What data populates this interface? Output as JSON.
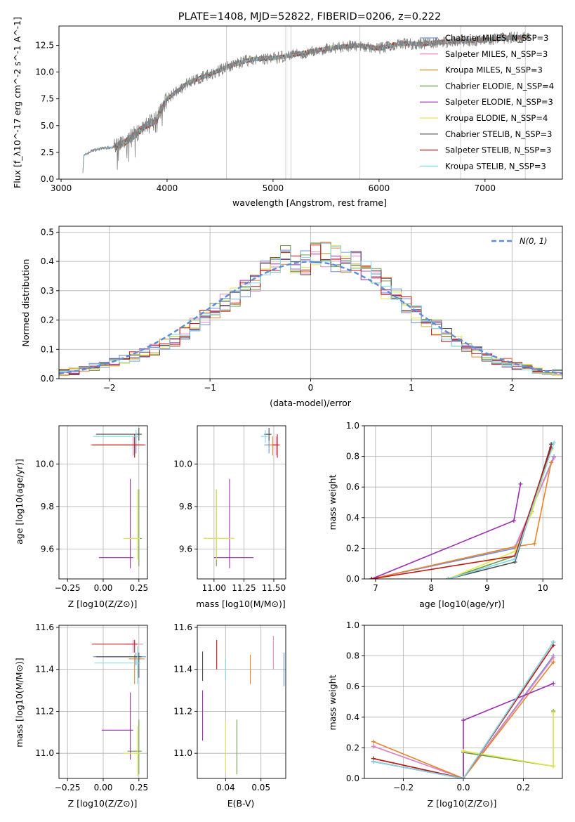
{
  "figure": {
    "title": "PLATE=1408, MJD=52822, FIBERID=0206, z=0.222"
  },
  "colors": {
    "Chabrier MILES": "#6a8fdc",
    "Salpeter MILES": "#e882c5",
    "Kroupa MILES": "#e8852a",
    "Chabrier ELODIE": "#6a9a4f",
    "Salpeter ELODIE": "#9b2fb0",
    "Kroupa ELODIE": "#e6e64a",
    "Chabrier STELIB": "#4a4a4a",
    "Salpeter STELIB": "#c01818",
    "Kroupa STELIB": "#7fd8e8",
    "observed": "#808080",
    "normal": "#5b8ed6"
  },
  "panels": {
    "spectrum": {
      "ylabel": "Flux [f_λ10^-17 erg cm^-2 s^-1 A^-1]",
      "xlabel": "wavelength [Angstrom, rest frame]",
      "xticks": [
        "3000",
        "4000",
        "5000",
        "6000",
        "7000"
      ],
      "yticks": [
        "0.0",
        "2.5",
        "5.0",
        "7.5",
        "10.0",
        "12.5"
      ]
    },
    "residuals": {
      "ylabel": "Normed distribution",
      "xlabel": "(data-model)/error",
      "xticks": [
        "−2",
        "−1",
        "0",
        "1",
        "2"
      ],
      "yticks": [
        "0.0",
        "0.1",
        "0.2",
        "0.3",
        "0.4",
        "0.5"
      ],
      "normal_label": "N(0, 1)"
    },
    "age_z": {
      "ylabel": "age  [log10(age/yr)]",
      "xlabel": "Z [log10(Z/Z⊙)]",
      "xticks": [
        "−0.25",
        "0.00",
        "0.25"
      ],
      "yticks": [
        "9.6",
        "9.8",
        "10.0"
      ]
    },
    "age_mass": {
      "xlabel": "mass [log10(M/M⊙)]",
      "xticks": [
        "11.00",
        "11.25",
        "11.50"
      ],
      "yticks": [
        "9.6",
        "9.8",
        "10.0"
      ]
    },
    "mw_age": {
      "ylabel": "mass weight",
      "xlabel": "age  [log10(age/yr)]",
      "xticks": [
        "7",
        "8",
        "9",
        "10"
      ],
      "yticks": [
        "0.0",
        "0.2",
        "0.4",
        "0.6",
        "0.8",
        "1.0"
      ]
    },
    "mass_z": {
      "ylabel": "mass [log10(M/M⊙)]",
      "xlabel": "Z [log10(Z/Z⊙)]",
      "xticks": [
        "−0.25",
        "0.00",
        "0.25"
      ],
      "yticks": [
        "11.0",
        "11.2",
        "11.4",
        "11.6"
      ]
    },
    "mass_ebv": {
      "xlabel": "E(B-V)",
      "xticks": [
        "0.04",
        "0.05"
      ],
      "yticks": [
        "11.0",
        "11.2",
        "11.4",
        "11.6"
      ]
    },
    "mw_z": {
      "ylabel": "mass weight",
      "xlabel": "Z [log10(Z/Z⊙)]",
      "xticks": [
        "−0.2",
        "0.0",
        "0.2"
      ],
      "yticks": [
        "0.0",
        "0.2",
        "0.4",
        "0.6",
        "0.8",
        "1.0"
      ]
    }
  },
  "chart_data": [
    {
      "type": "line",
      "title": "PLATE=1408, MJD=52822, FIBERID=0206, z=0.222",
      "xlabel": "wavelength [Angstrom, rest frame]",
      "ylabel": "Flux [f_λ10^-17 erg cm^-2 s^-1 A^-1]",
      "xlim": [
        2980,
        7730
      ],
      "ylim": [
        0,
        14.3
      ],
      "grid": false,
      "legend_position": "top-right",
      "observed_envelope": {
        "x": [
          3200,
          3215,
          3300,
          3400,
          3500,
          3600,
          3700,
          3800,
          3900,
          4000,
          4200,
          4400,
          4600,
          4800,
          5000,
          5200,
          5400,
          5600,
          5800,
          6000,
          6200,
          6400,
          6600,
          6800,
          7000,
          7200,
          7400
        ],
        "y": [
          0,
          2.2,
          2.7,
          2.9,
          3.0,
          3.4,
          4.2,
          5.0,
          5.5,
          7.5,
          9.0,
          9.8,
          10.6,
          11.2,
          11.3,
          11.6,
          12.0,
          12.3,
          12.5,
          12.2,
          12.7,
          12.6,
          12.8,
          12.9,
          13.0,
          13.2,
          13.3
        ]
      },
      "legend_series": [
        {
          "name": "Chabrier MILES, N_SSP=3"
        },
        {
          "name": "Salpeter MILES, N_SSP=3"
        },
        {
          "name": "Kroupa MILES, N_SSP=3"
        },
        {
          "name": "Chabrier ELODIE, N_SSP=4"
        },
        {
          "name": "Salpeter ELODIE, N_SSP=3"
        },
        {
          "name": "Kroupa ELODIE, N_SSP=4"
        },
        {
          "name": "Chabrier STELIB, N_SSP=3"
        },
        {
          "name": "Salpeter STELIB, N_SSP=3"
        },
        {
          "name": "Kroupa STELIB, N_SSP=3"
        }
      ]
    },
    {
      "type": "bar",
      "xlabel": "(data-model)/error",
      "ylabel": "Normed distribution",
      "xlim": [
        -2.5,
        2.5
      ],
      "ylim": [
        0,
        0.52
      ],
      "grid": true,
      "legend_position": "top-right",
      "bin_edges": [
        -2.5,
        -2.4,
        -2.3,
        -2.2,
        -2.1,
        -2.0,
        -1.9,
        -1.8,
        -1.7,
        -1.6,
        -1.5,
        -1.4,
        -1.3,
        -1.2,
        -1.1,
        -1.0,
        -0.9,
        -0.8,
        -0.7,
        -0.6,
        -0.5,
        -0.4,
        -0.3,
        -0.2,
        -0.1,
        0.0,
        0.1,
        0.2,
        0.3,
        0.4,
        0.5,
        0.6,
        0.7,
        0.8,
        0.9,
        1.0,
        1.1,
        1.2,
        1.3,
        1.4,
        1.5,
        1.6,
        1.7,
        1.8,
        1.9,
        2.0,
        2.1,
        2.2,
        2.3,
        2.4,
        2.5
      ],
      "hist_mean": [
        0.02,
        0.025,
        0.03,
        0.04,
        0.045,
        0.055,
        0.065,
        0.075,
        0.085,
        0.1,
        0.115,
        0.13,
        0.155,
        0.18,
        0.21,
        0.23,
        0.26,
        0.28,
        0.3,
        0.33,
        0.37,
        0.39,
        0.41,
        0.39,
        0.4,
        0.42,
        0.42,
        0.41,
        0.4,
        0.39,
        0.37,
        0.34,
        0.31,
        0.28,
        0.25,
        0.22,
        0.195,
        0.175,
        0.15,
        0.13,
        0.11,
        0.09,
        0.075,
        0.065,
        0.055,
        0.045,
        0.035,
        0.03,
        0.025,
        0.02
      ],
      "normal": {
        "label": "N(0, 1)",
        "mean": 0,
        "sigma": 1
      }
    },
    {
      "type": "scatter",
      "xlabel": "Z [log10(Z/Z⊙)]",
      "ylabel": "age  [log10(age/yr)]",
      "xlim": [
        -0.31,
        0.31
      ],
      "ylim": [
        9.46,
        10.18
      ],
      "grid": true,
      "points": [
        {
          "model": "Chabrier MILES",
          "x": 0.23,
          "y": 10.09,
          "xerr": [
            0.3,
            0.07
          ],
          "yerr": [
            0.04,
            0.04
          ]
        },
        {
          "model": "Salpeter MILES",
          "x": 0.21,
          "y": 10.09,
          "xerr": [
            0.3,
            0.07
          ],
          "yerr": [
            0.05,
            0.04
          ]
        },
        {
          "model": "Kroupa MILES",
          "x": 0.22,
          "y": 10.09,
          "xerr": [
            0.3,
            0.07
          ],
          "yerr": [
            0.05,
            0.04
          ]
        },
        {
          "model": "Chabrier ELODIE",
          "x": 0.25,
          "y": 9.65,
          "xerr": [
            0.1,
            0.02
          ],
          "yerr": [
            0.13,
            0.23
          ]
        },
        {
          "model": "Salpeter ELODIE",
          "x": 0.19,
          "y": 9.56,
          "xerr": [
            0.22,
            0.02
          ],
          "yerr": [
            0.05,
            0.37
          ]
        },
        {
          "model": "Kroupa ELODIE",
          "x": 0.24,
          "y": 9.65,
          "xerr": [
            0.1,
            0.02
          ],
          "yerr": [
            0.1,
            0.23
          ]
        },
        {
          "model": "Chabrier STELIB",
          "x": 0.25,
          "y": 10.14,
          "xerr": [
            0.3,
            0.02
          ],
          "yerr": [
            0.03,
            0.03
          ]
        },
        {
          "model": "Salpeter STELIB",
          "x": 0.22,
          "y": 10.09,
          "xerr": [
            0.3,
            0.07
          ],
          "yerr": [
            0.06,
            0.05
          ]
        },
        {
          "model": "Kroupa STELIB",
          "x": 0.23,
          "y": 10.13,
          "xerr": [
            0.3,
            0.02
          ],
          "yerr": [
            0.03,
            0.03
          ]
        }
      ]
    },
    {
      "type": "scatter",
      "xlabel": "mass [log10(M/M⊙)]",
      "xlim": [
        10.86,
        11.6
      ],
      "ylim": [
        9.46,
        10.18
      ],
      "grid": true,
      "points": [
        {
          "model": "Chabrier MILES",
          "x": 11.46,
          "y": 10.09,
          "xerr": [
            0.04,
            0.02
          ],
          "yerr": [
            0.04,
            0.04
          ]
        },
        {
          "model": "Salpeter MILES",
          "x": 11.52,
          "y": 10.09,
          "xerr": [
            0.04,
            0.02
          ],
          "yerr": [
            0.05,
            0.04
          ]
        },
        {
          "model": "Kroupa MILES",
          "x": 11.49,
          "y": 10.09,
          "xerr": [
            0.04,
            0.02
          ],
          "yerr": [
            0.05,
            0.04
          ]
        },
        {
          "model": "Chabrier ELODIE",
          "x": 11.02,
          "y": 9.65,
          "xerr": [
            0.11,
            0.15
          ],
          "yerr": [
            0.13,
            0.23
          ]
        },
        {
          "model": "Salpeter ELODIE",
          "x": 11.13,
          "y": 9.56,
          "xerr": [
            0.13,
            0.2
          ],
          "yerr": [
            0.05,
            0.37
          ]
        },
        {
          "model": "Kroupa ELODIE",
          "x": 11.02,
          "y": 9.65,
          "xerr": [
            0.11,
            0.15
          ],
          "yerr": [
            0.1,
            0.23
          ]
        },
        {
          "model": "Chabrier STELIB",
          "x": 11.46,
          "y": 10.14,
          "xerr": [
            0.04,
            0.02
          ],
          "yerr": [
            0.03,
            0.03
          ]
        },
        {
          "model": "Salpeter STELIB",
          "x": 11.53,
          "y": 10.09,
          "xerr": [
            0.04,
            0.02
          ],
          "yerr": [
            0.06,
            0.05
          ]
        },
        {
          "model": "Kroupa STELIB",
          "x": 11.43,
          "y": 10.13,
          "xerr": [
            0.04,
            0.02
          ],
          "yerr": [
            0.03,
            0.03
          ]
        }
      ]
    },
    {
      "type": "line",
      "xlabel": "age  [log10(age/yr)]",
      "ylabel": "mass weight",
      "xlim": [
        6.8,
        10.35
      ],
      "ylim": [
        0,
        1
      ],
      "grid": true,
      "series": [
        {
          "model": "Chabrier MILES",
          "x": [
            6.93,
            9.5,
            10.2
          ],
          "y": [
            0.0,
            0.2,
            0.8
          ]
        },
        {
          "model": "Salpeter MILES",
          "x": [
            6.93,
            9.5,
            10.2
          ],
          "y": [
            0.0,
            0.21,
            0.79
          ]
        },
        {
          "model": "Kroupa MILES",
          "x": [
            6.93,
            9.5,
            9.85,
            10.15
          ],
          "y": [
            0.0,
            0.21,
            0.23,
            0.76
          ]
        },
        {
          "model": "Chabrier ELODIE",
          "x": [
            8.3,
            9.5,
            9.8,
            10.15
          ],
          "y": [
            0.0,
            0.15,
            0.44,
            0.85
          ]
        },
        {
          "model": "Salpeter ELODIE",
          "x": [
            6.93,
            9.48,
            9.6
          ],
          "y": [
            0.0,
            0.38,
            0.62
          ]
        },
        {
          "model": "Kroupa ELODIE",
          "x": [
            8.3,
            9.5,
            9.8,
            10.15
          ],
          "y": [
            0.0,
            0.18,
            0.43,
            0.84
          ]
        },
        {
          "model": "Chabrier STELIB",
          "x": [
            8.3,
            9.5,
            10.15
          ],
          "y": [
            0.0,
            0.11,
            0.88
          ]
        },
        {
          "model": "Salpeter STELIB",
          "x": [
            6.93,
            9.5,
            10.15
          ],
          "y": [
            0.0,
            0.15,
            0.86
          ]
        },
        {
          "model": "Kroupa STELIB",
          "x": [
            8.3,
            9.5,
            10.2
          ],
          "y": [
            0.0,
            0.13,
            0.89
          ]
        }
      ]
    },
    {
      "type": "scatter",
      "xlabel": "Z [log10(Z/Z⊙)]",
      "ylabel": "mass [log10(M/M⊙)]",
      "xlim": [
        -0.31,
        0.31
      ],
      "ylim": [
        10.88,
        11.61
      ],
      "grid": true,
      "points": [
        {
          "model": "Chabrier MILES",
          "x": 0.23,
          "y": 11.46,
          "xerr": [
            0.3,
            0.07
          ],
          "yerr": [
            0.04,
            0.02
          ]
        },
        {
          "model": "Salpeter MILES",
          "x": 0.21,
          "y": 11.52,
          "xerr": [
            0.06,
            0.07
          ],
          "yerr": [
            0.04,
            0.02
          ]
        },
        {
          "model": "Kroupa MILES",
          "x": 0.22,
          "y": 11.45,
          "xerr": [
            0.04,
            0.07
          ],
          "yerr": [
            0.12,
            0.02
          ]
        },
        {
          "model": "Chabrier ELODIE",
          "x": 0.25,
          "y": 11.01,
          "xerr": [
            0.08,
            0.02
          ],
          "yerr": [
            0.11,
            0.15
          ]
        },
        {
          "model": "Salpeter ELODIE",
          "x": 0.19,
          "y": 11.11,
          "xerr": [
            0.2,
            0.02
          ],
          "yerr": [
            0.14,
            0.18
          ]
        },
        {
          "model": "Kroupa ELODIE",
          "x": 0.24,
          "y": 11.0,
          "xerr": [
            0.1,
            0.02
          ],
          "yerr": [
            0.11,
            0.13
          ]
        },
        {
          "model": "Chabrier STELIB",
          "x": 0.25,
          "y": 11.46,
          "xerr": [
            0.3,
            0.02
          ],
          "yerr": [
            0.1,
            0.02
          ]
        },
        {
          "model": "Salpeter STELIB",
          "x": 0.22,
          "y": 11.52,
          "xerr": [
            0.3,
            0.02
          ],
          "yerr": [
            0.04,
            0.02
          ]
        },
        {
          "model": "Kroupa STELIB",
          "x": 0.24,
          "y": 11.43,
          "xerr": [
            0.3,
            0.02
          ],
          "yerr": [
            0.1,
            0.08
          ]
        }
      ]
    },
    {
      "type": "scatter",
      "xlabel": "E(B-V)",
      "xlim": [
        0.032,
        0.057
      ],
      "ylim": [
        10.88,
        11.61
      ],
      "grid": true,
      "points": [
        {
          "model": "Chabrier STELIB",
          "x": 0.0335,
          "y": 11.385,
          "yerr": [
            0.04,
            0.1
          ]
        },
        {
          "model": "Salpeter ELODIE",
          "x": 0.0335,
          "y": 11.18,
          "yerr": [
            0.12,
            0.12
          ]
        },
        {
          "model": "Salpeter STELIB",
          "x": 0.0375,
          "y": 11.48,
          "yerr": [
            0.08,
            0.06
          ]
        },
        {
          "model": "Kroupa STELIB",
          "x": 0.04,
          "y": 11.38,
          "yerr": [
            0.03,
            0.07
          ]
        },
        {
          "model": "Kroupa ELODIE",
          "x": 0.04,
          "y": 11.03,
          "yerr": [
            0.12,
            0.12
          ]
        },
        {
          "model": "Chabrier ELODIE",
          "x": 0.0432,
          "y": 11.02,
          "yerr": [
            0.12,
            0.14
          ]
        },
        {
          "model": "Kroupa MILES",
          "x": 0.047,
          "y": 11.4,
          "yerr": [
            0.07,
            0.07
          ]
        },
        {
          "model": "Salpeter MILES",
          "x": 0.0535,
          "y": 11.48,
          "yerr": [
            0.08,
            0.08
          ]
        },
        {
          "model": "Chabrier MILES",
          "x": 0.0565,
          "y": 11.4,
          "yerr": [
            0.08,
            0.08
          ]
        }
      ]
    },
    {
      "type": "line",
      "xlabel": "Z [log10(Z/Z⊙)]",
      "ylabel": "mass weight",
      "xlim": [
        -0.33,
        0.33
      ],
      "ylim": [
        0,
        1
      ],
      "grid": true,
      "series": [
        {
          "model": "Chabrier MILES",
          "x": [
            -0.3,
            0.0,
            0.3
          ],
          "y": [
            0.21,
            0.0,
            0.8
          ]
        },
        {
          "model": "Salpeter MILES",
          "x": [
            -0.3,
            0.0,
            0.3
          ],
          "y": [
            0.21,
            0.0,
            0.79
          ]
        },
        {
          "model": "Kroupa MILES",
          "x": [
            -0.3,
            0.0,
            0.3
          ],
          "y": [
            0.24,
            0.0,
            0.76
          ]
        },
        {
          "model": "Chabrier ELODIE",
          "x": [
            -0.3,
            0.0,
            0.0,
            0.3,
            0.3
          ],
          "y": [
            0.13,
            0.0,
            0.17,
            0.08,
            0.44
          ]
        },
        {
          "model": "Salpeter ELODIE",
          "x": [
            -0.3,
            0.0,
            0.0,
            0.3
          ],
          "y": [
            0.11,
            0.0,
            0.38,
            0.62
          ]
        },
        {
          "model": "Kroupa ELODIE",
          "x": [
            0.0,
            0.3,
            0.3
          ],
          "y": [
            0.18,
            0.08,
            0.43
          ]
        },
        {
          "model": "Chabrier STELIB",
          "x": [
            -0.3,
            0.0,
            0.3
          ],
          "y": [
            0.11,
            0.0,
            0.89
          ]
        },
        {
          "model": "Salpeter STELIB",
          "x": [
            -0.3,
            0.0,
            0.3
          ],
          "y": [
            0.13,
            0.0,
            0.87
          ]
        },
        {
          "model": "Kroupa STELIB",
          "x": [
            -0.3,
            0.0,
            0.3
          ],
          "y": [
            0.11,
            0.0,
            0.89
          ]
        }
      ]
    }
  ]
}
